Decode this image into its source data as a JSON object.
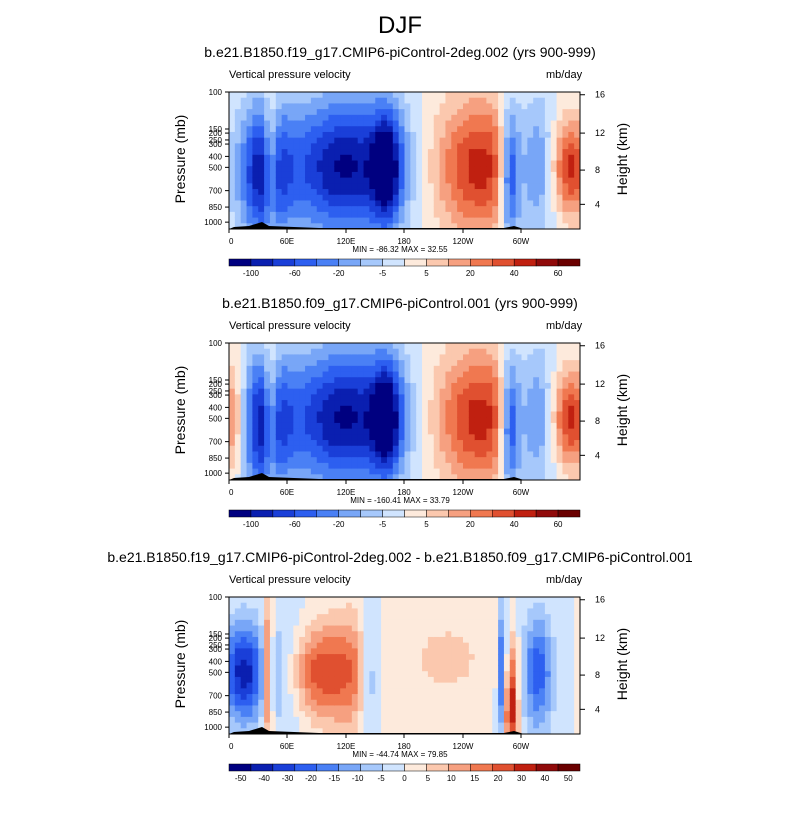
{
  "page_title": "DJF",
  "chart_data": [
    {
      "type": "heatmap",
      "title": "b.e21.B1850.f19_g17.CMIP6-piControl-2deg.002 (yrs 900-999)",
      "variable": "Vertical pressure velocity",
      "units": "mb/day",
      "ylabel": "Pressure (mb)",
      "ylabel_right": "Height (km)",
      "x_ticks": [
        "0",
        "60E",
        "120E",
        "180",
        "120W",
        "60W"
      ],
      "y_ticks": [
        "100",
        "150",
        "200",
        "250",
        "300",
        "400",
        "500",
        "700",
        "850",
        "1000"
      ],
      "height_ticks": [
        "16",
        "12",
        "8",
        "4"
      ],
      "stats": "MIN = -86.32   MAX =  32.55",
      "colorbar_labels": [
        "-100",
        "-60",
        "-20",
        "-5",
        "5",
        "20",
        "40",
        "60"
      ],
      "colors": [
        "#000080",
        "#0a1fb0",
        "#1a3fd8",
        "#2d5ff0",
        "#4a80f5",
        "#78a6f7",
        "#a6c8fb",
        "#d0e4fe",
        "#fdeadc",
        "#fbc8ae",
        "#f6a080",
        "#f07850",
        "#e05030",
        "#c02010",
        "#900a0a",
        "#6a0000"
      ],
      "range": [
        -86.32,
        32.55
      ]
    },
    {
      "type": "heatmap",
      "title": "b.e21.B1850.f09_g17.CMIP6-piControl.001 (yrs 900-999)",
      "variable": "Vertical pressure velocity",
      "units": "mb/day",
      "ylabel": "Pressure (mb)",
      "ylabel_right": "Height (km)",
      "x_ticks": [
        "0",
        "60E",
        "120E",
        "180",
        "120W",
        "60W"
      ],
      "y_ticks": [
        "100",
        "150",
        "200",
        "250",
        "300",
        "400",
        "500",
        "700",
        "850",
        "1000"
      ],
      "height_ticks": [
        "16",
        "12",
        "8",
        "4"
      ],
      "stats": "MIN = -160.41   MAX =  33.79",
      "colorbar_labels": [
        "-100",
        "-60",
        "-20",
        "-5",
        "5",
        "20",
        "40",
        "60"
      ],
      "colors": [
        "#000080",
        "#0a1fb0",
        "#1a3fd8",
        "#2d5ff0",
        "#4a80f5",
        "#78a6f7",
        "#a6c8fb",
        "#d0e4fe",
        "#fdeadc",
        "#fbc8ae",
        "#f6a080",
        "#f07850",
        "#e05030",
        "#c02010",
        "#900a0a",
        "#6a0000"
      ],
      "range": [
        -160.41,
        33.79
      ]
    },
    {
      "type": "heatmap",
      "title": "b.e21.B1850.f19_g17.CMIP6-piControl-2deg.002 - b.e21.B1850.f09_g17.CMIP6-piControl.001",
      "variable": "Vertical pressure velocity",
      "units": "mb/day",
      "ylabel": "Pressure (mb)",
      "ylabel_right": "Height (km)",
      "x_ticks": [
        "0",
        "60E",
        "120E",
        "180",
        "120W",
        "60W"
      ],
      "y_ticks": [
        "100",
        "150",
        "200",
        "250",
        "300",
        "400",
        "500",
        "700",
        "850",
        "1000"
      ],
      "height_ticks": [
        "16",
        "12",
        "8",
        "4"
      ],
      "stats": "MIN = -44.74   MAX =  79.85",
      "colorbar_labels": [
        "-50",
        "-40",
        "-30",
        "-20",
        "-15",
        "-10",
        "-5",
        "0",
        "5",
        "10",
        "15",
        "20",
        "30",
        "40",
        "50"
      ],
      "colors": [
        "#000080",
        "#0a1fb0",
        "#1a3fd8",
        "#2d5ff0",
        "#4a80f5",
        "#78a6f7",
        "#a6c8fb",
        "#d0e4fe",
        "#fdeadc",
        "#fbc8ae",
        "#f6a080",
        "#f07850",
        "#e05030",
        "#c02010",
        "#900a0a",
        "#6a0000"
      ],
      "range": [
        -44.74,
        79.85
      ]
    }
  ]
}
